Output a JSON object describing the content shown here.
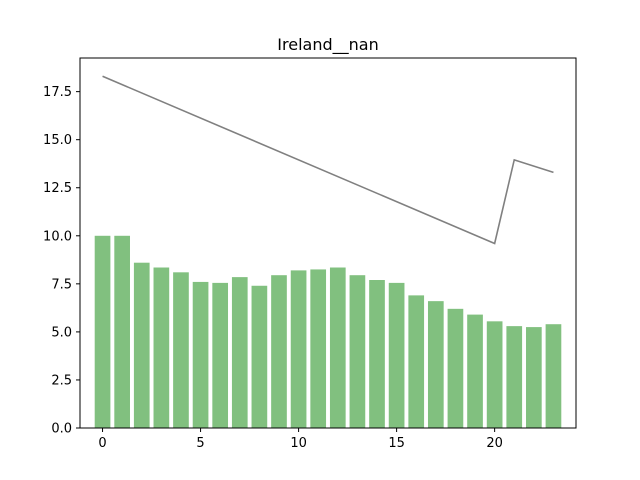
{
  "chart_data": {
    "type": "bar",
    "title": "Ireland__nan",
    "xlabel": "",
    "ylabel": "",
    "x": [
      0,
      1,
      2,
      3,
      4,
      5,
      6,
      7,
      8,
      9,
      10,
      11,
      12,
      13,
      14,
      15,
      16,
      17,
      18,
      19,
      20,
      21,
      22,
      23
    ],
    "values": [
      10.0,
      10.0,
      8.6,
      8.35,
      8.1,
      7.6,
      7.55,
      7.85,
      7.4,
      7.95,
      8.2,
      8.25,
      8.35,
      7.95,
      7.7,
      7.55,
      6.9,
      6.6,
      6.2,
      5.9,
      5.55,
      5.3,
      5.25,
      5.4
    ],
    "line": {
      "x": [
        0,
        20,
        21,
        23
      ],
      "y": [
        18.3,
        9.6,
        13.95,
        13.3
      ]
    },
    "xticks": [
      0,
      5,
      10,
      15,
      20
    ],
    "yticks": [
      0.0,
      2.5,
      5.0,
      7.5,
      10.0,
      12.5,
      15.0,
      17.5
    ],
    "xlim": [
      -1.15,
      24.15
    ],
    "ylim": [
      0,
      19.25
    ],
    "bar_color": "#81c07f",
    "line_color": "#808080",
    "grid": false
  }
}
